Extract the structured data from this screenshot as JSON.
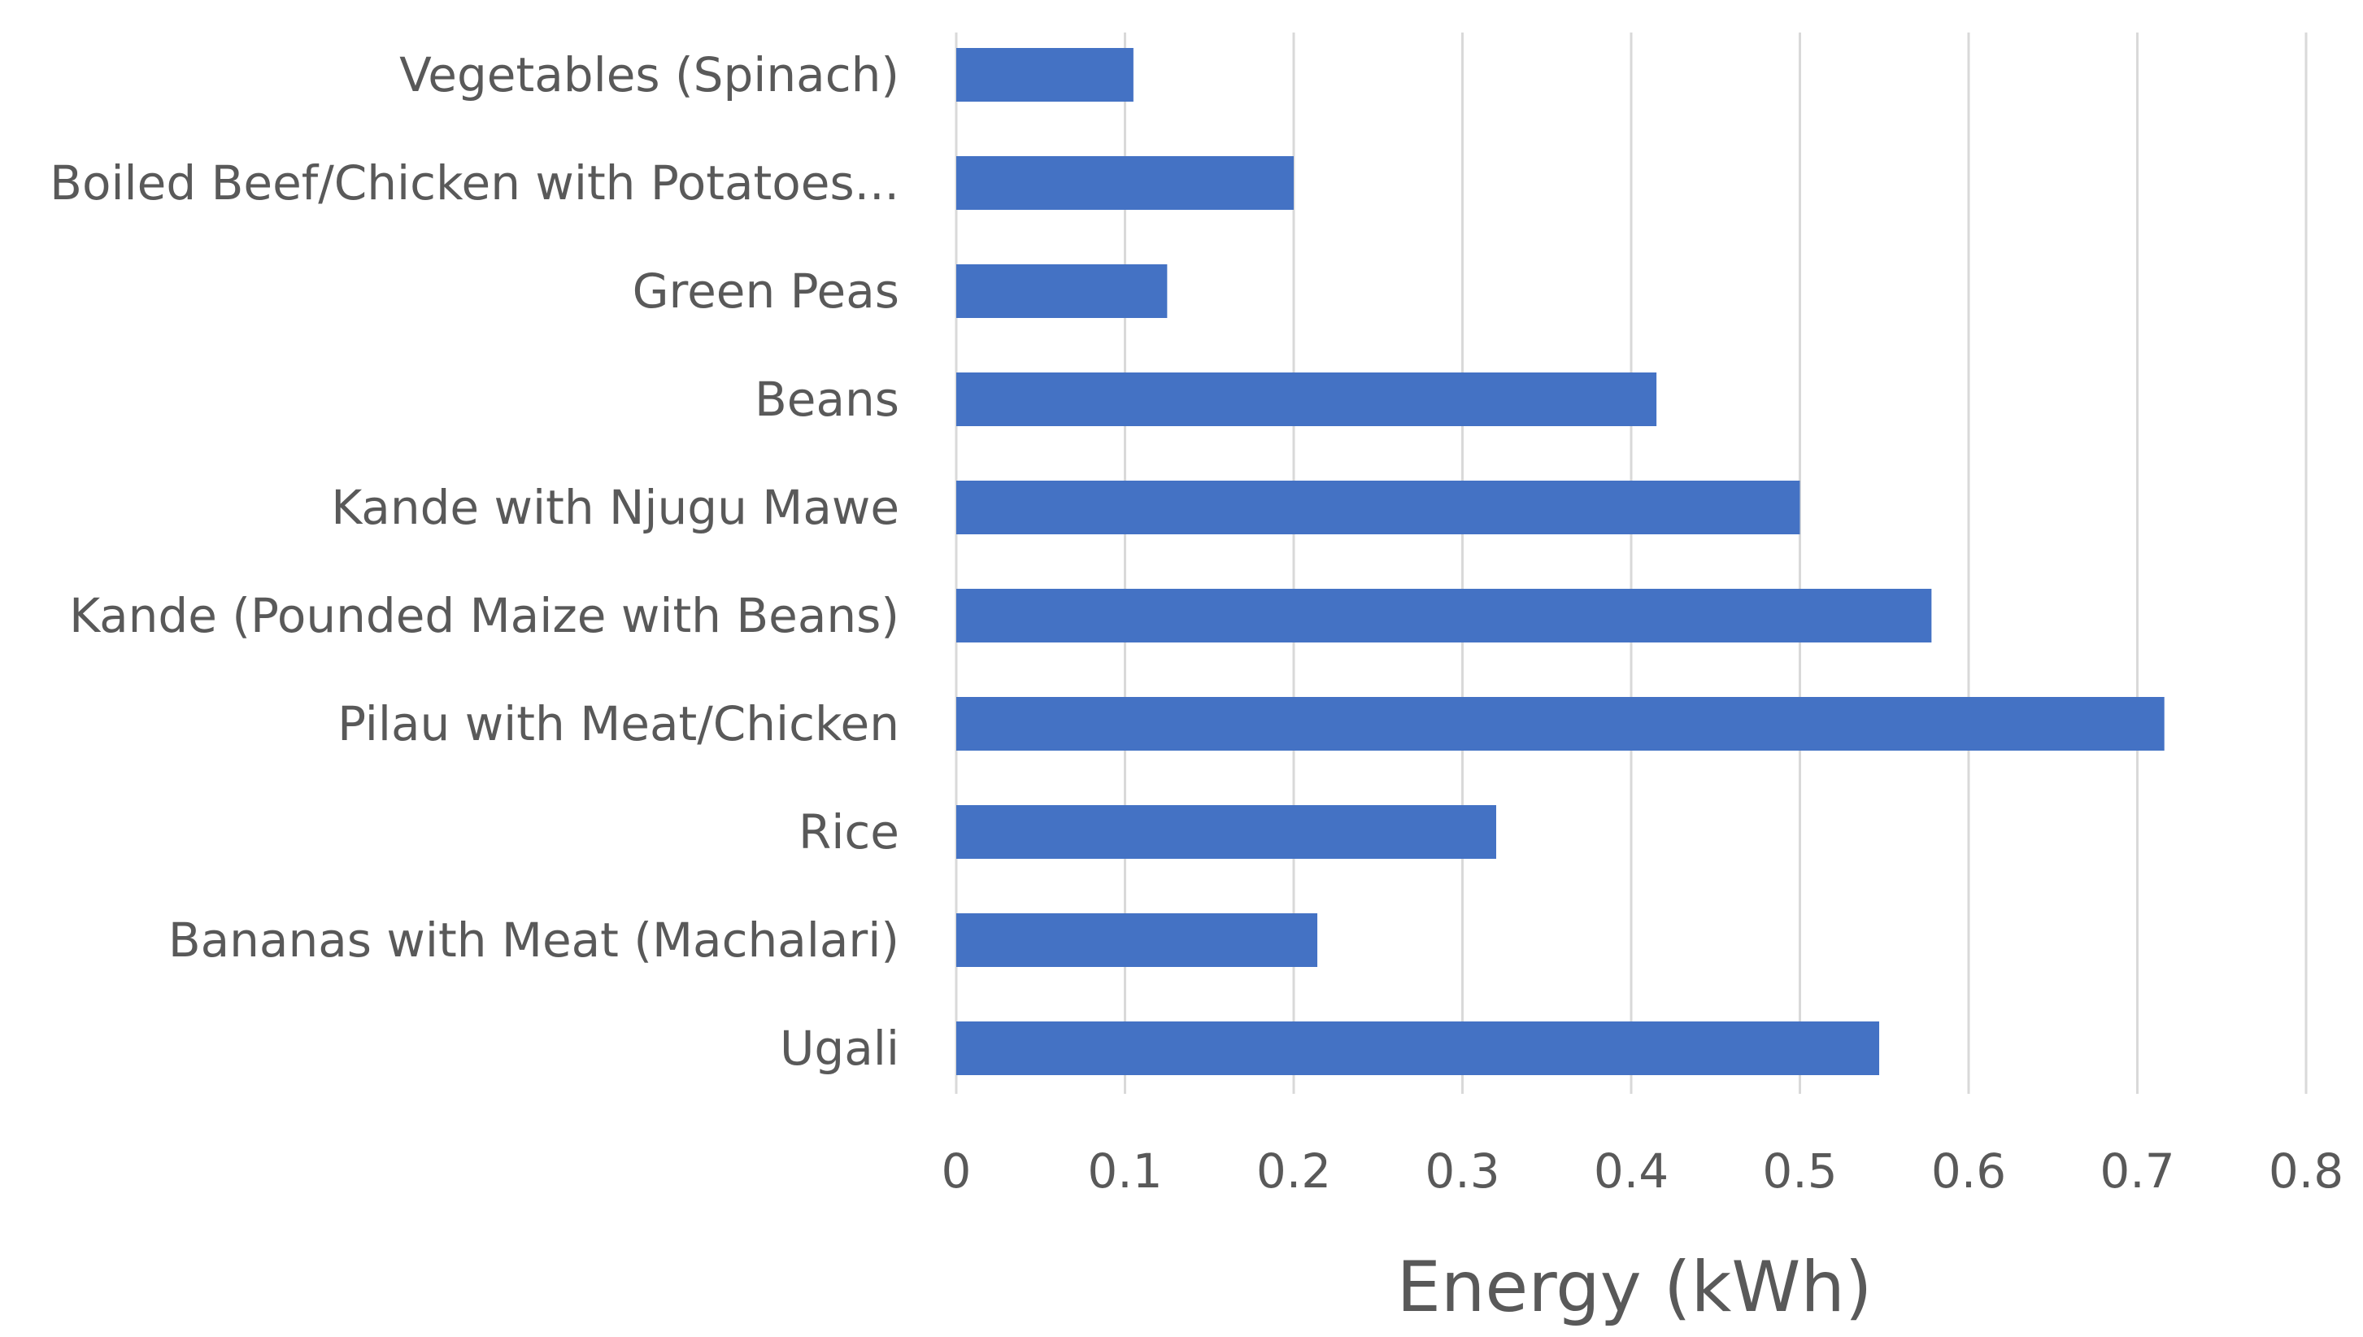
{
  "colors": {
    "bar": "#4472c4",
    "grid": "#d9d9d9",
    "text": "#595959",
    "background": "#ffffff"
  },
  "chart_data": {
    "type": "bar",
    "orientation": "horizontal",
    "title": "",
    "xlabel": "Energy (kWh)",
    "ylabel": "",
    "xlim": [
      0,
      0.8
    ],
    "x_ticks": [
      0,
      0.1,
      0.2,
      0.3,
      0.4,
      0.5,
      0.6,
      0.7,
      0.8
    ],
    "x_tick_labels": [
      "0",
      "0.1",
      "0.2",
      "0.3",
      "0.4",
      "0.5",
      "0.6",
      "0.7",
      "0.8"
    ],
    "grid": "vertical",
    "legend": "none",
    "categories": [
      "Vegetables (Spinach)",
      "Boiled Beef/Chicken with Potatoes...",
      "Green Peas",
      "Beans",
      "Kande with Njugu Mawe",
      "Kande (Pounded Maize with Beans)",
      "Pilau with Meat/Chicken",
      "Rice",
      "Bananas with Meat (Machalari)",
      "Ugali"
    ],
    "values": [
      0.105,
      0.2,
      0.125,
      0.415,
      0.5,
      0.578,
      0.716,
      0.32,
      0.214,
      0.547
    ]
  }
}
